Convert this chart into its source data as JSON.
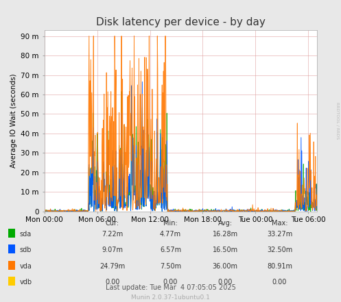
{
  "title": "Disk latency per device - by day",
  "ylabel": "Average IO Wait (seconds)",
  "yticks": [
    0,
    10,
    20,
    30,
    40,
    50,
    60,
    70,
    80,
    90
  ],
  "ytick_labels": [
    "0",
    "10 m",
    "20 m",
    "30 m",
    "40 m",
    "50 m",
    "60 m",
    "70 m",
    "80 m",
    "90 m"
  ],
  "xtick_labels": [
    "Mon 00:00",
    "Mon 06:00",
    "Mon 12:00",
    "Mon 18:00",
    "Tue 00:00",
    "Tue 06:00"
  ],
  "ylim": [
    0,
    93
  ],
  "colors": {
    "sda": "#00aa00",
    "sdb": "#0055ff",
    "vda": "#ff7700",
    "vdb": "#ffcc00"
  },
  "legend": [
    "sda",
    "sdb",
    "vda",
    "vdb"
  ],
  "stats": {
    "sda": {
      "cur": "7.22m",
      "min": "4.77m",
      "avg": "16.28m",
      "max": "33.27m"
    },
    "sdb": {
      "cur": "9.07m",
      "min": "6.57m",
      "avg": "16.50m",
      "max": "32.50m"
    },
    "vda": {
      "cur": "24.79m",
      "min": "7.50m",
      "avg": "36.00m",
      "max": "80.91m"
    },
    "vdb": {
      "cur": "0.00",
      "min": "0.00",
      "avg": "0.00",
      "max": "0.00"
    }
  },
  "last_update": "Last update: Tue Mar  4 07:05:05 2025",
  "munin_version": "Munin 2.0.37-1ubuntu0.1",
  "bg_color": "#e8e8e8",
  "plot_bg_color": "#ffffff",
  "grid_color": "#e0a0a0",
  "title_fontsize": 11,
  "axis_fontsize": 7.5
}
